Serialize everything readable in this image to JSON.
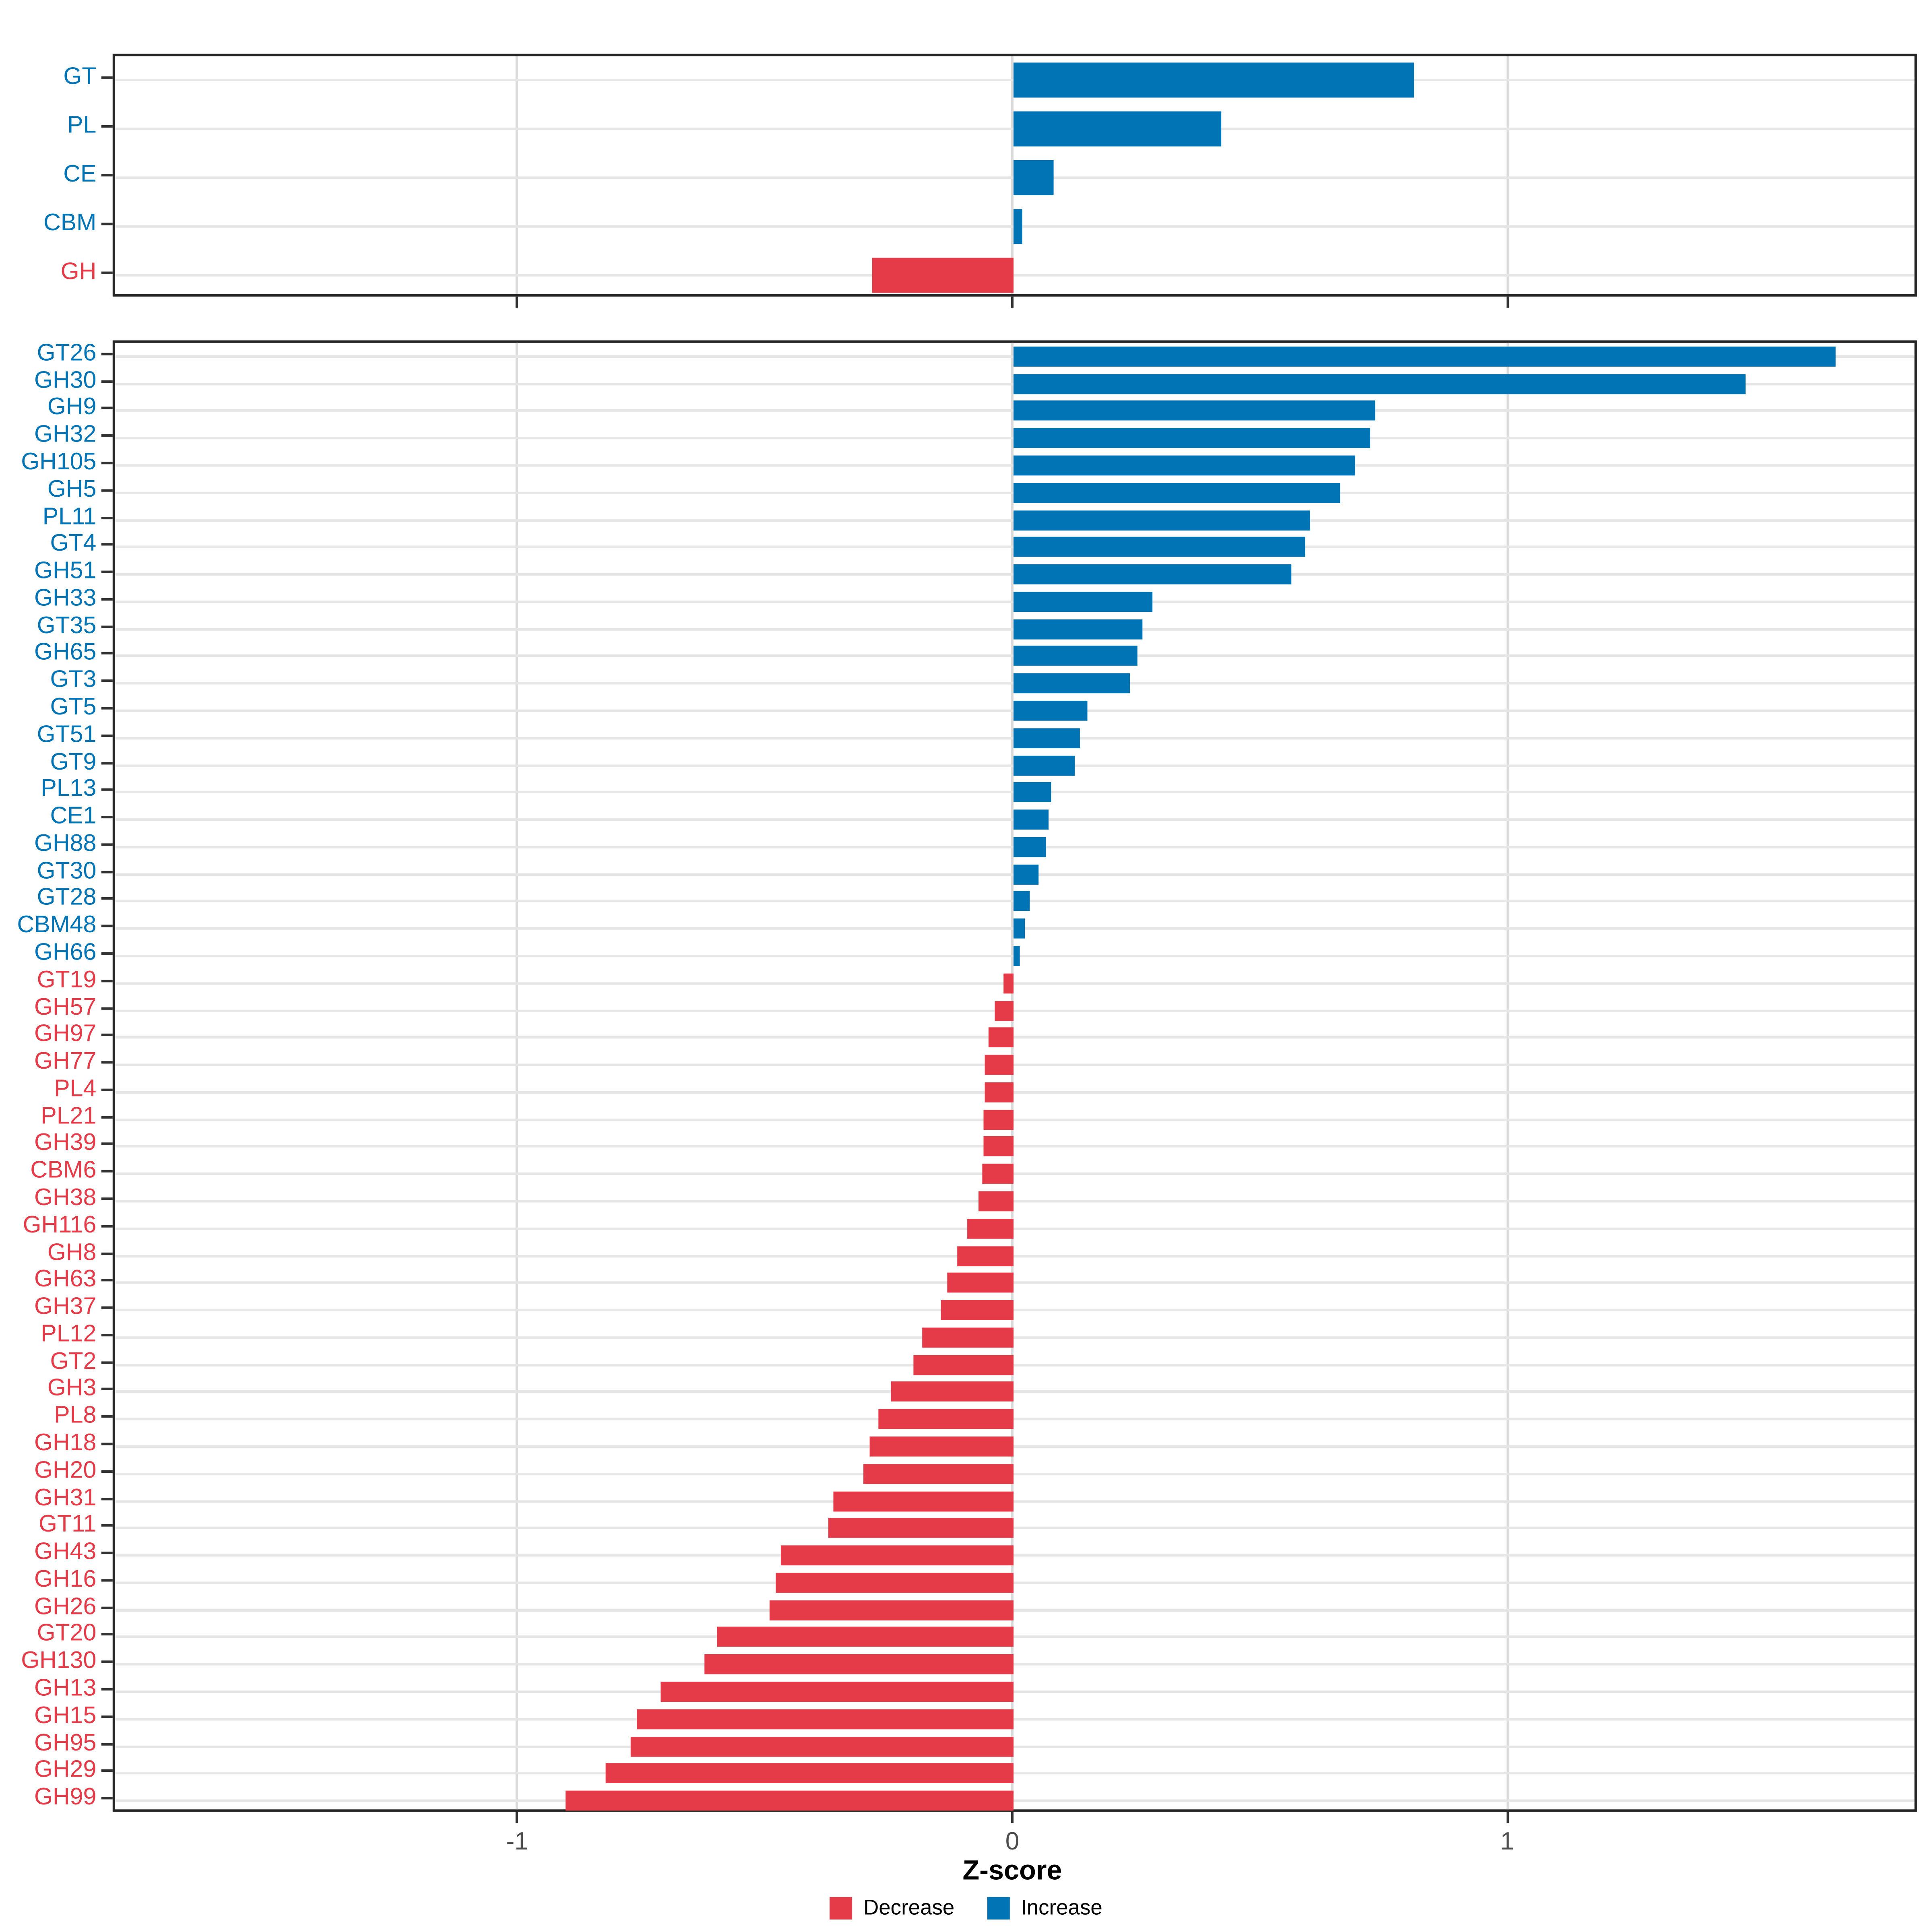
{
  "page": {
    "background": "#FFFFFF"
  },
  "colors": {
    "increase": "#0074B5",
    "decrease": "#E53A48",
    "grid_horizontal": "#E6E6E6",
    "grid_vertical": "#DBDBDB",
    "panel_border": "#262626",
    "tick": "#333333",
    "tick_label": "#4D4D4D",
    "axis_title": "#000000"
  },
  "axis": {
    "label": "Z-score",
    "tick_labels": [
      "-1",
      "0",
      "1"
    ],
    "tick_values": [
      -1,
      0,
      1
    ],
    "range_min": -1.82,
    "range_max": 1.83,
    "grid": true
  },
  "legend": {
    "position": "bottom-center",
    "items": [
      {
        "label": "Decrease",
        "key": "decrease"
      },
      {
        "label": "Increase",
        "key": "increase"
      }
    ]
  },
  "chart_data": [
    {
      "type": "bar",
      "orientation": "horizontal",
      "panel": "cazyme-classes",
      "xlabel": "Z-score",
      "xlim": [
        -1.82,
        1.83
      ],
      "categories": [
        "GT",
        "PL",
        "CE",
        "CBM",
        "GH"
      ],
      "values": [
        0.81,
        0.42,
        0.08,
        0.017,
        -0.285
      ],
      "series_rule": "positive values = Increase (blue), negative values = Decrease (red)"
    },
    {
      "type": "bar",
      "orientation": "horizontal",
      "panel": "cazyme-families",
      "xlabel": "Z-score",
      "xlim": [
        -1.82,
        1.83
      ],
      "categories": [
        "GT26",
        "GH30",
        "GH9",
        "GH32",
        "GH105",
        "GH5",
        "PL11",
        "GT4",
        "GH51",
        "GH33",
        "GT35",
        "GH65",
        "GT3",
        "GT5",
        "GT51",
        "GT9",
        "PL13",
        "CE1",
        "GH88",
        "GT30",
        "GT28",
        "CBM48",
        "GH66",
        "GT19",
        "GH57",
        "GH97",
        "GH77",
        "PL4",
        "PL21",
        "GH39",
        "CBM6",
        "GH38",
        "GH116",
        "GH8",
        "GH63",
        "GH37",
        "PL12",
        "GT2",
        "GH3",
        "PL8",
        "GH18",
        "GH20",
        "GH31",
        "GT11",
        "GH43",
        "GH16",
        "GH26",
        "GT20",
        "GH130",
        "GH13",
        "GH15",
        "GH95",
        "GH29",
        "GH99"
      ],
      "values": [
        1.66,
        1.48,
        0.73,
        0.72,
        0.69,
        0.66,
        0.6,
        0.59,
        0.56,
        0.28,
        0.26,
        0.25,
        0.235,
        0.15,
        0.135,
        0.125,
        0.075,
        0.072,
        0.066,
        0.05,
        0.034,
        0.024,
        0.013,
        -0.02,
        -0.038,
        -0.051,
        -0.057,
        -0.058,
        -0.06,
        -0.061,
        -0.063,
        -0.071,
        -0.093,
        -0.113,
        -0.133,
        -0.147,
        -0.184,
        -0.202,
        -0.247,
        -0.272,
        -0.29,
        -0.303,
        -0.363,
        -0.375,
        -0.47,
        -0.48,
        -0.492,
        -0.6,
        -0.625,
        -0.713,
        -0.76,
        -0.774,
        -0.825,
        -0.905
      ],
      "series_rule": "positive values = Increase (blue), negative values = Decrease (red)"
    }
  ]
}
